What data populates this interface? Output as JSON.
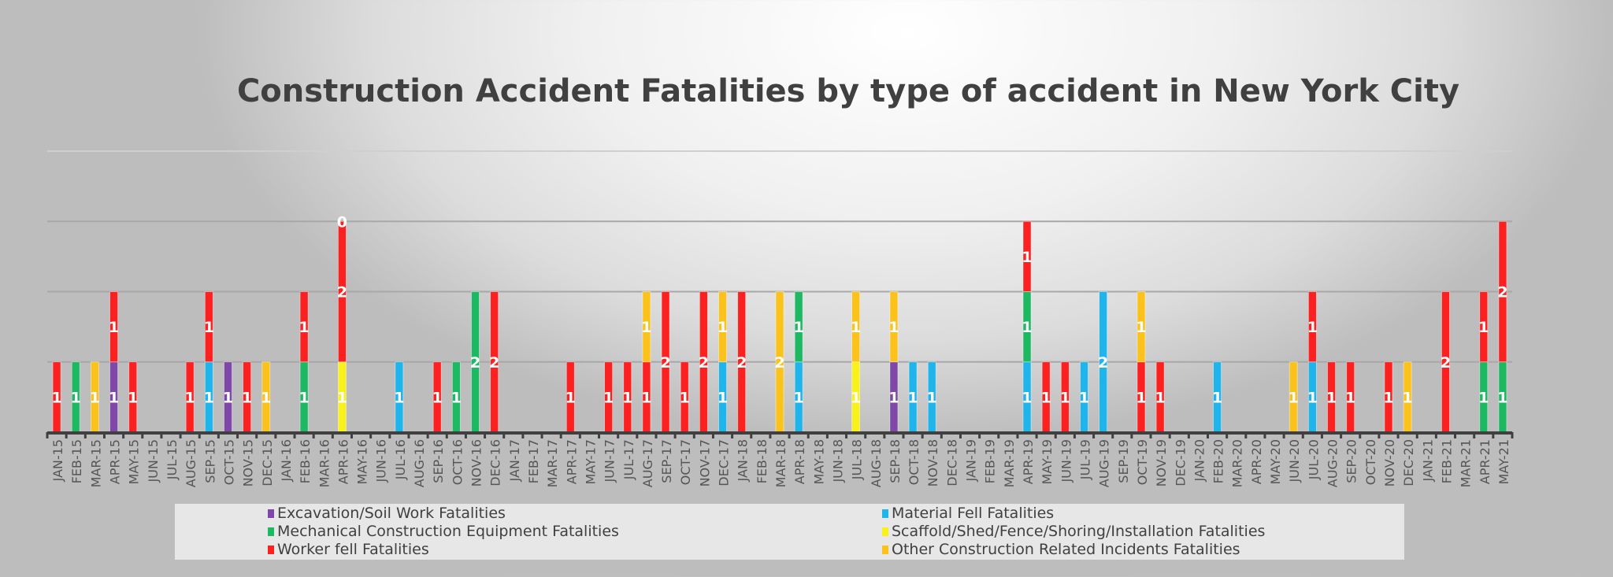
{
  "chart_data": {
    "type": "bar",
    "stacked": true,
    "title": "Construction Accident Fatalities by type of accident in New York City",
    "xlabel": "",
    "ylabel": "",
    "ylim": [
      0,
      4
    ],
    "grid": true,
    "legend_position": "bottom",
    "categories": [
      "JAN-15",
      "FEB-15",
      "MAR-15",
      "APR-15",
      "MAY-15",
      "JUN-15",
      "JUL-15",
      "AUG-15",
      "SEP-15",
      "OCT-15",
      "NOV-15",
      "DEC-15",
      "JAN-16",
      "FEB-16",
      "MAR-16",
      "APR-16",
      "MAY-16",
      "JUN-16",
      "JUL-16",
      "AUG-16",
      "SEP-16",
      "OCT-16",
      "NOV-16",
      "DEC-16",
      "JAN-17",
      "FEB-17",
      "MAR-17",
      "APR-17",
      "MAY-17",
      "JUN-17",
      "JUL-17",
      "AUG-17",
      "SEP-17",
      "OCT-17",
      "NOV-17",
      "DEC-17",
      "JAN-18",
      "FEB-18",
      "MAR-18",
      "APR-18",
      "MAY-18",
      "JUN-18",
      "JUL-18",
      "AUG-18",
      "SEP-18",
      "OCT-18",
      "NOV-18",
      "DEC-18",
      "JAN-19",
      "FEB-19",
      "MAR-19",
      "APR-19",
      "MAY-19",
      "JUN-19",
      "JUL-19",
      "AUG-19",
      "SEP-19",
      "OCT-19",
      "NOV-19",
      "DEC-19",
      "JAN-20",
      "FEB-20",
      "MAR-20",
      "APR-20",
      "MAY-20",
      "JUN-20",
      "JUL-20",
      "AUG-20",
      "SEP-20",
      "OCT-20",
      "NOV-20",
      "DEC-20",
      "JAN-21",
      "FEB-21",
      "MAR-21",
      "APR-21",
      "MAY-21"
    ],
    "series": [
      {
        "name": "Excavation/Soil Work Fatalities",
        "color": "#7f48a8",
        "values": [
          null,
          null,
          null,
          1,
          null,
          null,
          null,
          null,
          null,
          1,
          null,
          null,
          null,
          null,
          null,
          null,
          null,
          null,
          null,
          null,
          null,
          null,
          null,
          null,
          null,
          null,
          null,
          null,
          null,
          null,
          null,
          null,
          null,
          null,
          null,
          null,
          null,
          null,
          null,
          null,
          null,
          null,
          null,
          null,
          1,
          null,
          null,
          null,
          null,
          null,
          null,
          null,
          null,
          null,
          null,
          null,
          null,
          null,
          null,
          null,
          null,
          null,
          null,
          null,
          null,
          null,
          null,
          null,
          null,
          null,
          null,
          null,
          null,
          null,
          null,
          null,
          null
        ]
      },
      {
        "name": "Material Fell Fatalities",
        "color": "#1fb4ea",
        "values": [
          null,
          null,
          null,
          null,
          null,
          null,
          null,
          null,
          1,
          null,
          null,
          null,
          null,
          null,
          null,
          null,
          null,
          null,
          1,
          null,
          null,
          null,
          null,
          null,
          null,
          null,
          null,
          null,
          null,
          null,
          null,
          null,
          null,
          null,
          null,
          1,
          null,
          null,
          null,
          1,
          null,
          null,
          null,
          null,
          null,
          1,
          1,
          null,
          null,
          null,
          null,
          1,
          null,
          null,
          1,
          2,
          null,
          null,
          null,
          null,
          null,
          1,
          null,
          null,
          null,
          null,
          1,
          null,
          null,
          null,
          null,
          null,
          null,
          null,
          null,
          null,
          null
        ]
      },
      {
        "name": "Mechanical Construction Equipment Fatalities",
        "color": "#1db862",
        "values": [
          null,
          1,
          null,
          null,
          null,
          null,
          null,
          null,
          null,
          null,
          null,
          null,
          null,
          1,
          null,
          null,
          null,
          null,
          null,
          null,
          null,
          1,
          2,
          null,
          null,
          null,
          null,
          null,
          null,
          null,
          null,
          null,
          null,
          null,
          null,
          null,
          null,
          null,
          null,
          1,
          null,
          null,
          null,
          null,
          null,
          null,
          null,
          null,
          null,
          null,
          null,
          1,
          null,
          null,
          null,
          null,
          null,
          null,
          null,
          null,
          null,
          null,
          null,
          null,
          null,
          null,
          null,
          null,
          null,
          null,
          null,
          null,
          null,
          null,
          null,
          1,
          1
        ]
      },
      {
        "name": "Scaffold/Shed/Fence/Shoring/Installation Fatalities",
        "color": "#f9f21a",
        "values": [
          null,
          null,
          null,
          null,
          null,
          null,
          null,
          null,
          null,
          null,
          null,
          null,
          null,
          null,
          null,
          1,
          null,
          null,
          null,
          null,
          null,
          null,
          null,
          null,
          null,
          null,
          null,
          null,
          null,
          null,
          null,
          null,
          null,
          null,
          null,
          null,
          null,
          null,
          null,
          null,
          null,
          null,
          1,
          null,
          null,
          null,
          null,
          null,
          null,
          null,
          null,
          null,
          null,
          null,
          null,
          null,
          null,
          null,
          null,
          null,
          null,
          null,
          null,
          null,
          null,
          null,
          null,
          null,
          null,
          null,
          null,
          null,
          null,
          null,
          null,
          null,
          null
        ]
      },
      {
        "name": "Worker fell Fatalities",
        "color": "#fb2121",
        "values": [
          1,
          null,
          null,
          1,
          1,
          null,
          null,
          1,
          1,
          null,
          1,
          null,
          null,
          1,
          null,
          2,
          null,
          null,
          null,
          null,
          1,
          null,
          null,
          2,
          null,
          null,
          null,
          1,
          null,
          1,
          1,
          1,
          2,
          1,
          2,
          null,
          2,
          null,
          null,
          null,
          null,
          null,
          null,
          null,
          null,
          null,
          null,
          null,
          null,
          null,
          null,
          1,
          1,
          1,
          null,
          null,
          null,
          1,
          1,
          null,
          null,
          null,
          null,
          null,
          null,
          null,
          1,
          1,
          1,
          null,
          1,
          null,
          null,
          2,
          null,
          1,
          2
        ]
      },
      {
        "name": "Other Construction Related Incidents Fatalities",
        "color": "#fbc21c",
        "values": [
          null,
          null,
          1,
          null,
          null,
          null,
          null,
          null,
          null,
          null,
          null,
          1,
          null,
          null,
          null,
          0,
          null,
          null,
          null,
          null,
          null,
          null,
          null,
          null,
          null,
          null,
          null,
          null,
          null,
          null,
          null,
          1,
          null,
          null,
          null,
          1,
          null,
          null,
          2,
          null,
          null,
          null,
          1,
          null,
          1,
          null,
          null,
          null,
          null,
          null,
          null,
          null,
          null,
          null,
          null,
          null,
          null,
          1,
          null,
          null,
          null,
          null,
          null,
          null,
          null,
          1,
          null,
          null,
          null,
          null,
          null,
          1,
          null,
          null,
          null,
          null,
          null
        ]
      }
    ]
  }
}
